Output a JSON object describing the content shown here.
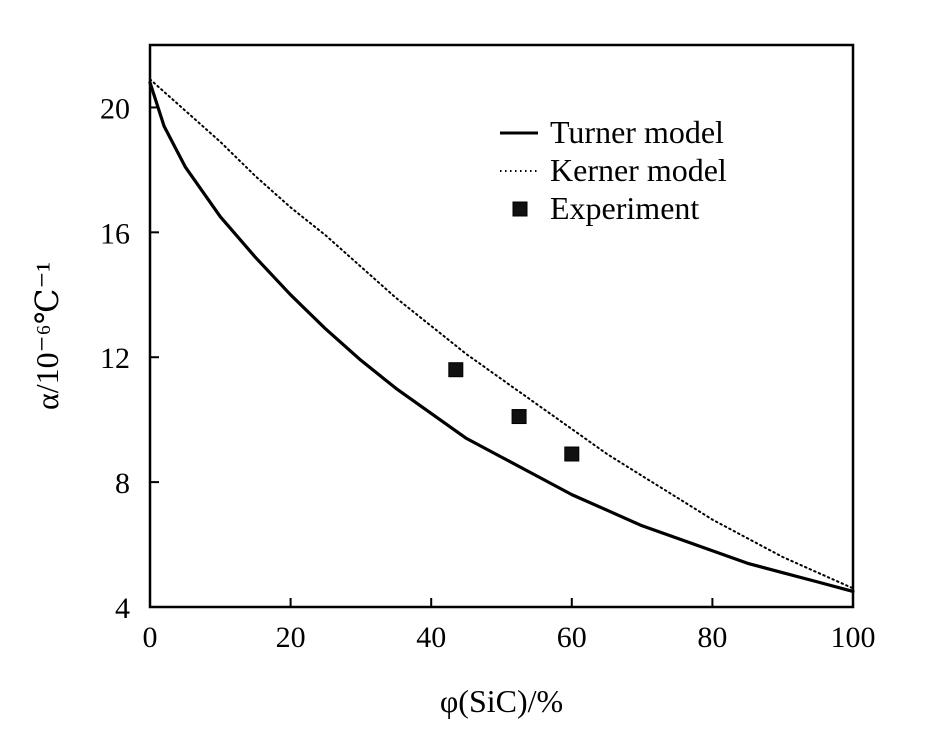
{
  "chart_data": {
    "type": "line",
    "xlabel": "φ(SiC)/%",
    "ylabel": "α/10⁻⁶℃⁻¹",
    "xlim": [
      0,
      100
    ],
    "ylim": [
      4,
      22
    ],
    "xticks": [
      0,
      20,
      40,
      60,
      80,
      100
    ],
    "yticks": [
      4,
      8,
      12,
      16,
      20
    ],
    "grid": false,
    "legend_position": "top-right",
    "series": [
      {
        "name": "Turner model",
        "kind": "line",
        "style": "solid",
        "x": [
          0,
          2,
          5,
          10,
          15,
          20,
          25,
          30,
          35,
          40,
          45,
          50,
          55,
          60,
          65,
          70,
          75,
          80,
          85,
          90,
          95,
          100
        ],
        "y": [
          20.8,
          19.4,
          18.1,
          16.5,
          15.2,
          14.0,
          12.9,
          11.9,
          11.0,
          10.2,
          9.4,
          8.8,
          8.2,
          7.6,
          7.1,
          6.6,
          6.2,
          5.8,
          5.4,
          5.1,
          4.8,
          4.5
        ]
      },
      {
        "name": "Kerner model",
        "kind": "line",
        "style": "dotted",
        "x": [
          0,
          5,
          10,
          15,
          20,
          25,
          30,
          35,
          40,
          45,
          50,
          55,
          60,
          65,
          70,
          75,
          80,
          85,
          90,
          95,
          100
        ],
        "y": [
          20.9,
          19.9,
          18.9,
          17.8,
          16.8,
          15.9,
          14.9,
          13.9,
          13.0,
          12.1,
          11.3,
          10.5,
          9.7,
          8.9,
          8.2,
          7.5,
          6.8,
          6.2,
          5.6,
          5.1,
          4.6
        ]
      },
      {
        "name": "Experiment",
        "kind": "scatter",
        "marker": "square",
        "x": [
          43.5,
          52.5,
          60.0
        ],
        "y": [
          11.6,
          10.1,
          8.9
        ]
      }
    ]
  }
}
